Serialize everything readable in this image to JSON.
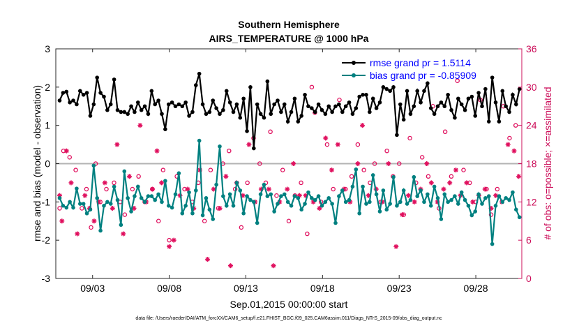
{
  "chart_data": {
    "type": "line",
    "title": "Southern Hemisphere",
    "subtitle": "AIRS_TEMPERATURE @ 1000 hPa",
    "xlabel": "Sep.01,2015 00:00:00 start",
    "ylabel": "rmse and bias (model - observation)",
    "ylabel_right": "# of obs: o=possible; ×=assimilated",
    "footnote": "data file: /Users/raeder/DAI/ATM_forcXX/CAM6_setup/f.e21.FHIST_BGC.f09_025.CAM6assim.011/Diags_NTrS_2015-09/obs_diag_output.nc",
    "x_tick_labels": [
      "09/03",
      "09/08",
      "09/13",
      "09/18",
      "09/23",
      "09/28"
    ],
    "x_tick_days": [
      3,
      8,
      13,
      18,
      23,
      28
    ],
    "xlim_days": [
      0.6,
      31.0
    ],
    "ylim": [
      -3,
      3
    ],
    "y_ticks": [
      "-3",
      "-2",
      "-1",
      "0",
      "1",
      "2",
      "3"
    ],
    "ylim_right": [
      0,
      36
    ],
    "y_ticks_right": [
      "0",
      "6",
      "12",
      "18",
      "24",
      "30",
      "36"
    ],
    "grid": false,
    "legend_position": "top-right",
    "colors": {
      "rmse": "#000000",
      "bias": "#008080",
      "obs": "#e0115f",
      "zero_line": "#b3b3b3",
      "right_axis": "#cc0e5a"
    },
    "series": [
      {
        "name": "rmse grand pr = 1.5114",
        "color": "#000000",
        "values": [
          1.65,
          1.85,
          1.88,
          1.6,
          1.65,
          1.55,
          1.9,
          1.8,
          1.85,
          1.25,
          1.55,
          2.25,
          1.85,
          1.75,
          1.4,
          1.55,
          2.2,
          1.4,
          1.35,
          1.35,
          1.3,
          1.5,
          1.35,
          1.6,
          1.4,
          1.5,
          1.3,
          1.9,
          1.55,
          1.65,
          1.3,
          0.9,
          1.55,
          1.6,
          1.5,
          1.55,
          1.5,
          1.6,
          1.25,
          1.35,
          2.05,
          2.35,
          1.55,
          1.3,
          1.35,
          1.65,
          1.45,
          1.3,
          1.4,
          1.9,
          1.6,
          1.35,
          1.55,
          1.2,
          1.7,
          0.85,
          2.0,
          0.4,
          1.55,
          1.3,
          1.2,
          2.15,
          1.3,
          1.55,
          1.65,
          1.35,
          1.55,
          1.1,
          1.35,
          1.7,
          1.1,
          1.25,
          1.8,
          1.5,
          1.45,
          1.35,
          1.55,
          1.4,
          1.3,
          1.5,
          1.35,
          1.5,
          1.55,
          1.35,
          1.5,
          1.6,
          1.3,
          1.45,
          1.75,
          1.8,
          1.8,
          1.35,
          1.7,
          1.45,
          1.6,
          2.0,
          1.95,
          1.9,
          2.0,
          0.75,
          1.55,
          1.15,
          1.9,
          1.3,
          1.5,
          1.9,
          1.6,
          1.9,
          2.1,
          1.45,
          1.3,
          1.5,
          1.6,
          1.5,
          1.8,
          1.4,
          1.2,
          1.7,
          1.55,
          1.4,
          1.7,
          1.75,
          1.25,
          1.85,
          1.5,
          1.95,
          1.1,
          2.25,
          1.6,
          1.1,
          1.9,
          1.5,
          1.35,
          1.8,
          1.55,
          1.95
        ]
      },
      {
        "name": "bias grand pr = -0.85909",
        "color": "#008080",
        "values": [
          -0.9,
          -1.1,
          -1.15,
          -1.0,
          -1.15,
          -0.65,
          -1.05,
          -1.05,
          -1.3,
          -1.2,
          -0.05,
          -0.9,
          -1.75,
          -1.1,
          -1.0,
          -1.05,
          -0.6,
          -0.95,
          -1.6,
          -0.2,
          -0.9,
          -1.25,
          -0.85,
          -0.6,
          -0.9,
          -1.0,
          -0.85,
          -0.85,
          -0.95,
          -0.8,
          -1.0,
          -0.45,
          -1.1,
          -1.15,
          -0.8,
          -0.25,
          -1.3,
          -1.1,
          -0.75,
          -1.3,
          -0.7,
          0.6,
          -1.35,
          -0.9,
          -1.2,
          -1.45,
          -0.55,
          0.45,
          -0.85,
          -1.1,
          -0.8,
          -1.1,
          -0.5,
          -0.7,
          -1.3,
          -0.85,
          -0.95,
          -1.0,
          -1.55,
          -0.8,
          -0.55,
          -0.85,
          -0.8,
          -1.25,
          -1.05,
          -0.85,
          -0.8,
          -1.0,
          -1.1,
          -0.85,
          -0.9,
          -1.2,
          -1.05,
          -0.75,
          -0.9,
          -0.95,
          -0.85,
          -1.1,
          -1.0,
          -0.9,
          -1.05,
          -1.55,
          -0.85,
          -0.7,
          -1.0,
          -0.95,
          -0.6,
          -0.15,
          -1.3,
          -0.6,
          -1.05,
          -1.0,
          -0.3,
          -0.8,
          -1.25,
          -0.7,
          -1.2,
          -1.05,
          -0.35,
          -1.1,
          -1.0,
          -0.7,
          -1.05,
          -0.95,
          -0.35,
          -0.85,
          -0.7,
          -1.0,
          -0.8,
          -1.1,
          -0.6,
          -0.9,
          -1.45,
          -0.8,
          -1.0,
          -0.95,
          -0.85,
          -1.05,
          -0.75,
          -0.95,
          -1.1,
          -1.35,
          -1.25,
          -0.8,
          -1.05,
          -0.9,
          -0.85,
          -2.1,
          -1.1,
          -0.85,
          -1.0,
          -0.9,
          -0.95,
          -0.75,
          -1.2,
          -1.4
        ]
      }
    ],
    "obs_possible": [
      [
        0.85,
        11
      ],
      [
        1.1,
        20
      ],
      [
        1.5,
        19
      ],
      [
        1.9,
        17
      ],
      [
        2.3,
        11
      ],
      [
        2.6,
        14
      ],
      [
        2.9,
        8
      ],
      [
        3.2,
        18
      ],
      [
        3.5,
        12
      ],
      [
        3.9,
        14
      ],
      [
        4.4,
        15
      ],
      [
        4.8,
        12
      ],
      [
        5.1,
        10
      ],
      [
        5.6,
        14
      ],
      [
        6.0,
        16
      ],
      [
        6.4,
        12
      ],
      [
        6.9,
        14
      ],
      [
        7.3,
        9
      ],
      [
        7.6,
        17
      ],
      [
        8.0,
        6
      ],
      [
        8.5,
        16
      ],
      [
        9.0,
        14
      ],
      [
        9.5,
        12
      ],
      [
        9.9,
        15
      ],
      [
        10.3,
        9
      ],
      [
        10.7,
        17
      ],
      [
        11.2,
        11
      ],
      [
        11.5,
        18
      ],
      [
        11.9,
        20
      ],
      [
        12.3,
        14
      ],
      [
        12.7,
        8
      ],
      [
        13.1,
        15
      ],
      [
        13.5,
        22
      ],
      [
        13.9,
        18
      ],
      [
        14.3,
        15
      ],
      [
        14.6,
        23
      ],
      [
        15.0,
        13
      ],
      [
        15.4,
        17
      ],
      [
        15.8,
        9
      ],
      [
        16.2,
        13
      ],
      [
        16.6,
        15
      ],
      [
        17.0,
        7
      ],
      [
        17.3,
        30
      ],
      [
        17.5,
        26
      ],
      [
        17.9,
        12
      ],
      [
        18.3,
        21
      ],
      [
        18.7,
        14
      ],
      [
        19.1,
        28
      ],
      [
        19.5,
        14
      ],
      [
        19.9,
        16
      ],
      [
        20.3,
        21
      ],
      [
        20.7,
        17
      ],
      [
        21.1,
        15
      ],
      [
        21.4,
        18
      ],
      [
        21.8,
        12
      ],
      [
        22.2,
        20
      ],
      [
        22.6,
        16
      ],
      [
        23.0,
        18
      ],
      [
        23.3,
        10
      ],
      [
        23.7,
        22
      ],
      [
        24.1,
        15
      ],
      [
        24.5,
        19
      ],
      [
        24.9,
        16
      ],
      [
        25.2,
        27
      ],
      [
        25.6,
        11
      ],
      [
        26.0,
        23
      ],
      [
        26.4,
        16
      ],
      [
        26.8,
        31
      ],
      [
        27.2,
        17
      ],
      [
        27.6,
        15
      ],
      [
        28.0,
        12
      ],
      [
        28.3,
        28
      ],
      [
        28.7,
        14
      ],
      [
        29.0,
        10
      ],
      [
        29.4,
        14
      ],
      [
        29.8,
        27
      ],
      [
        30.2,
        22
      ],
      [
        30.6,
        24
      ]
    ],
    "obs_assimilated": [
      [
        0.85,
        13
      ],
      [
        1.0,
        9
      ],
      [
        1.3,
        20
      ],
      [
        1.6,
        15
      ],
      [
        2.0,
        7
      ],
      [
        2.5,
        13
      ],
      [
        2.8,
        11
      ],
      [
        3.1,
        9
      ],
      [
        3.4,
        12
      ],
      [
        3.8,
        15
      ],
      [
        4.3,
        11
      ],
      [
        4.6,
        21
      ],
      [
        5.0,
        7
      ],
      [
        5.4,
        16
      ],
      [
        5.7,
        11
      ],
      [
        6.1,
        24
      ],
      [
        6.5,
        12
      ],
      [
        6.9,
        14
      ],
      [
        7.2,
        20
      ],
      [
        7.5,
        15
      ],
      [
        8.0,
        5
      ],
      [
        8.3,
        6
      ],
      [
        8.7,
        13
      ],
      [
        9.2,
        14
      ],
      [
        9.6,
        11
      ],
      [
        10.0,
        17
      ],
      [
        10.5,
        3
      ],
      [
        10.9,
        14
      ],
      [
        11.3,
        11
      ],
      [
        11.7,
        16
      ],
      [
        12.0,
        2
      ],
      [
        12.4,
        15
      ],
      [
        12.8,
        13
      ],
      [
        13.2,
        21
      ],
      [
        13.6,
        12
      ],
      [
        14.0,
        14
      ],
      [
        14.5,
        14
      ],
      [
        14.8,
        2
      ],
      [
        15.2,
        12
      ],
      [
        15.7,
        14
      ],
      [
        16.1,
        18
      ],
      [
        16.5,
        13
      ],
      [
        16.9,
        13
      ],
      [
        17.4,
        12
      ],
      [
        17.8,
        11
      ],
      [
        18.2,
        22
      ],
      [
        18.6,
        17
      ],
      [
        19.0,
        21
      ],
      [
        19.4,
        14
      ],
      [
        19.8,
        12
      ],
      [
        20.3,
        18
      ],
      [
        20.6,
        24
      ],
      [
        21.0,
        13
      ],
      [
        21.5,
        14
      ],
      [
        21.9,
        12
      ],
      [
        22.3,
        18
      ],
      [
        22.8,
        5
      ],
      [
        23.2,
        10
      ],
      [
        23.6,
        13
      ],
      [
        24.0,
        12
      ],
      [
        24.4,
        14
      ],
      [
        24.8,
        18
      ],
      [
        25.1,
        15
      ],
      [
        25.5,
        12
      ],
      [
        25.9,
        14
      ],
      [
        26.3,
        15
      ],
      [
        26.7,
        17
      ],
      [
        27.0,
        13
      ],
      [
        27.4,
        15
      ],
      [
        27.8,
        12
      ],
      [
        28.2,
        13
      ],
      [
        28.6,
        14
      ],
      [
        29.0,
        11
      ],
      [
        29.3,
        13
      ],
      [
        29.7,
        12
      ],
      [
        30.1,
        21
      ],
      [
        30.5,
        20
      ],
      [
        30.8,
        16
      ]
    ]
  }
}
